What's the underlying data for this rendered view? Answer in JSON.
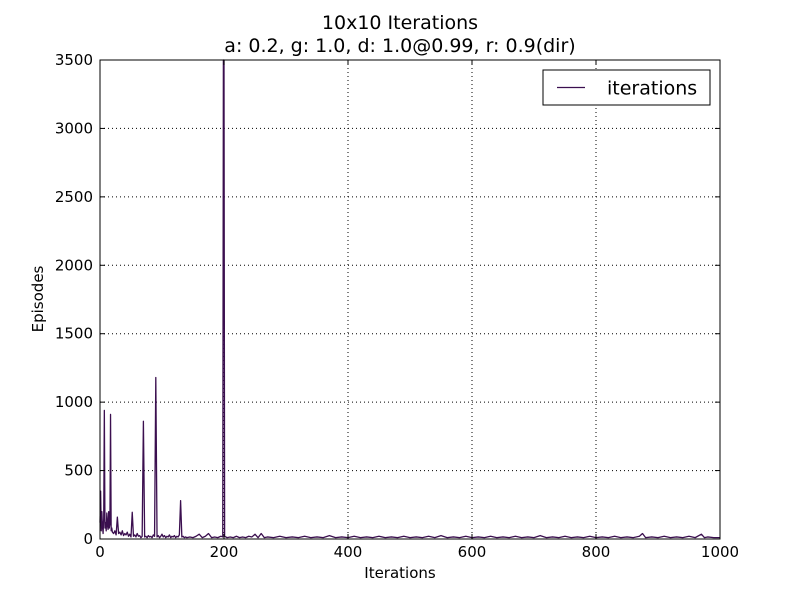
{
  "chart_data": {
    "type": "line",
    "title": "10x10 Iterations",
    "subtitle": "a: 0.2, g: 1.0, d: 1.0@0.99, r: 0.9(dir)",
    "xlabel": "Iterations",
    "ylabel": "Episodes",
    "xlim": [
      0,
      1000
    ],
    "ylim": [
      0,
      3500
    ],
    "xticks": [
      0,
      200,
      400,
      600,
      800,
      1000
    ],
    "yticks": [
      0,
      500,
      1000,
      1500,
      2000,
      2500,
      3000,
      3500
    ],
    "grid": true,
    "legend_position": "top-right",
    "series": [
      {
        "name": "iterations",
        "color": "#3b0f4f",
        "points": [
          [
            0,
            120
          ],
          [
            1,
            350
          ],
          [
            2,
            60
          ],
          [
            3,
            200
          ],
          [
            4,
            90
          ],
          [
            5,
            40
          ],
          [
            6,
            150
          ],
          [
            7,
            940
          ],
          [
            8,
            80
          ],
          [
            9,
            120
          ],
          [
            10,
            60
          ],
          [
            11,
            190
          ],
          [
            12,
            100
          ],
          [
            13,
            70
          ],
          [
            14,
            200
          ],
          [
            15,
            80
          ],
          [
            16,
            110
          ],
          [
            17,
            910
          ],
          [
            18,
            60
          ],
          [
            19,
            80
          ],
          [
            20,
            50
          ],
          [
            22,
            40
          ],
          [
            24,
            60
          ],
          [
            26,
            30
          ],
          [
            28,
            160
          ],
          [
            30,
            40
          ],
          [
            32,
            50
          ],
          [
            34,
            30
          ],
          [
            36,
            60
          ],
          [
            38,
            25
          ],
          [
            40,
            40
          ],
          [
            42,
            30
          ],
          [
            44,
            50
          ],
          [
            46,
            20
          ],
          [
            48,
            35
          ],
          [
            50,
            15
          ],
          [
            52,
            195
          ],
          [
            54,
            20
          ],
          [
            56,
            30
          ],
          [
            58,
            15
          ],
          [
            60,
            40
          ],
          [
            62,
            20
          ],
          [
            64,
            25
          ],
          [
            66,
            10
          ],
          [
            68,
            20
          ],
          [
            70,
            860
          ],
          [
            72,
            15
          ],
          [
            74,
            20
          ],
          [
            76,
            10
          ],
          [
            78,
            25
          ],
          [
            80,
            15
          ],
          [
            82,
            20
          ],
          [
            84,
            10
          ],
          [
            86,
            30
          ],
          [
            88,
            20
          ],
          [
            90,
            1180
          ],
          [
            92,
            15
          ],
          [
            94,
            25
          ],
          [
            96,
            10
          ],
          [
            98,
            20
          ],
          [
            100,
            35
          ],
          [
            102,
            15
          ],
          [
            104,
            25
          ],
          [
            106,
            10
          ],
          [
            108,
            20
          ],
          [
            110,
            15
          ],
          [
            112,
            30
          ],
          [
            114,
            10
          ],
          [
            116,
            20
          ],
          [
            118,
            15
          ],
          [
            120,
            25
          ],
          [
            122,
            10
          ],
          [
            124,
            20
          ],
          [
            126,
            15
          ],
          [
            128,
            30
          ],
          [
            130,
            280
          ],
          [
            132,
            15
          ],
          [
            134,
            20
          ],
          [
            136,
            10
          ],
          [
            138,
            15
          ],
          [
            140,
            10
          ],
          [
            145,
            15
          ],
          [
            150,
            10
          ],
          [
            155,
            20
          ],
          [
            160,
            35
          ],
          [
            165,
            10
          ],
          [
            170,
            20
          ],
          [
            175,
            40
          ],
          [
            180,
            10
          ],
          [
            185,
            15
          ],
          [
            190,
            10
          ],
          [
            195,
            20
          ],
          [
            198,
            15
          ],
          [
            199,
            3500
          ],
          [
            200,
            3500
          ],
          [
            201,
            20
          ],
          [
            205,
            10
          ],
          [
            210,
            15
          ],
          [
            215,
            10
          ],
          [
            220,
            20
          ],
          [
            225,
            10
          ],
          [
            230,
            15
          ],
          [
            235,
            10
          ],
          [
            240,
            20
          ],
          [
            245,
            15
          ],
          [
            250,
            35
          ],
          [
            255,
            10
          ],
          [
            260,
            40
          ],
          [
            265,
            10
          ],
          [
            270,
            15
          ],
          [
            280,
            10
          ],
          [
            290,
            20
          ],
          [
            300,
            10
          ],
          [
            310,
            15
          ],
          [
            320,
            10
          ],
          [
            330,
            20
          ],
          [
            340,
            10
          ],
          [
            350,
            15
          ],
          [
            360,
            10
          ],
          [
            370,
            25
          ],
          [
            380,
            10
          ],
          [
            390,
            15
          ],
          [
            400,
            10
          ],
          [
            410,
            20
          ],
          [
            420,
            10
          ],
          [
            430,
            15
          ],
          [
            440,
            10
          ],
          [
            450,
            20
          ],
          [
            460,
            10
          ],
          [
            470,
            15
          ],
          [
            480,
            10
          ],
          [
            490,
            20
          ],
          [
            500,
            10
          ],
          [
            510,
            15
          ],
          [
            520,
            10
          ],
          [
            530,
            20
          ],
          [
            540,
            10
          ],
          [
            550,
            25
          ],
          [
            560,
            10
          ],
          [
            570,
            15
          ],
          [
            580,
            10
          ],
          [
            590,
            20
          ],
          [
            600,
            10
          ],
          [
            610,
            15
          ],
          [
            620,
            10
          ],
          [
            630,
            20
          ],
          [
            640,
            10
          ],
          [
            650,
            15
          ],
          [
            660,
            10
          ],
          [
            670,
            20
          ],
          [
            680,
            10
          ],
          [
            690,
            15
          ],
          [
            700,
            10
          ],
          [
            710,
            25
          ],
          [
            720,
            10
          ],
          [
            730,
            15
          ],
          [
            740,
            10
          ],
          [
            750,
            20
          ],
          [
            760,
            10
          ],
          [
            770,
            15
          ],
          [
            780,
            10
          ],
          [
            790,
            20
          ],
          [
            800,
            10
          ],
          [
            810,
            15
          ],
          [
            820,
            10
          ],
          [
            830,
            20
          ],
          [
            840,
            10
          ],
          [
            850,
            15
          ],
          [
            860,
            10
          ],
          [
            870,
            20
          ],
          [
            875,
            40
          ],
          [
            880,
            10
          ],
          [
            890,
            15
          ],
          [
            900,
            10
          ],
          [
            910,
            20
          ],
          [
            920,
            10
          ],
          [
            930,
            15
          ],
          [
            940,
            10
          ],
          [
            950,
            20
          ],
          [
            960,
            10
          ],
          [
            970,
            35
          ],
          [
            975,
            10
          ],
          [
            980,
            15
          ],
          [
            990,
            10
          ],
          [
            1000,
            10
          ]
        ]
      }
    ]
  }
}
